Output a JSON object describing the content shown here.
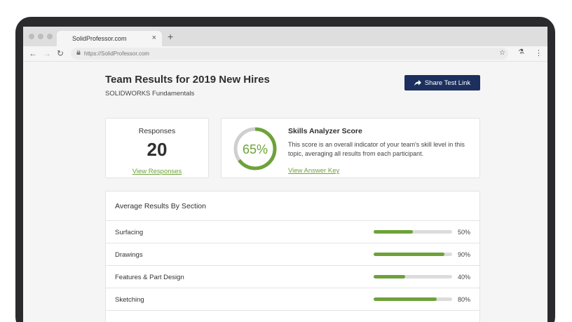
{
  "browser": {
    "tab_title": "SolidProfessor.com",
    "tab_close": "×",
    "new_tab": "+",
    "url": "https://SolidProfessor.com"
  },
  "page": {
    "title": "Team Results for 2019 New Hires",
    "subtitle": "SOLIDWORKS Fundamentals",
    "share_button": "Share Test Link"
  },
  "responses": {
    "label": "Responses",
    "count": "20",
    "link": "View Responses"
  },
  "score": {
    "value_label": "65%",
    "value": 0.65,
    "title": "Skills Analyzer Score",
    "description": "This score is an overall indicator of your team's skill level in this topic, averaging all results from each participant.",
    "link": "View Answer Key",
    "color": "#6ea23a"
  },
  "sections": {
    "title": "Average Results By Section",
    "rows": [
      {
        "name": "Surfacing",
        "pct_label": "50%",
        "value": 0.5
      },
      {
        "name": "Drawings",
        "pct_label": "90%",
        "value": 0.9
      },
      {
        "name": "Features & Part Design",
        "pct_label": "40%",
        "value": 0.4
      },
      {
        "name": "Sketching",
        "pct_label": "80%",
        "value": 0.8
      }
    ]
  },
  "colors": {
    "accent": "#6ea23a",
    "button": "#1c2f5e"
  }
}
